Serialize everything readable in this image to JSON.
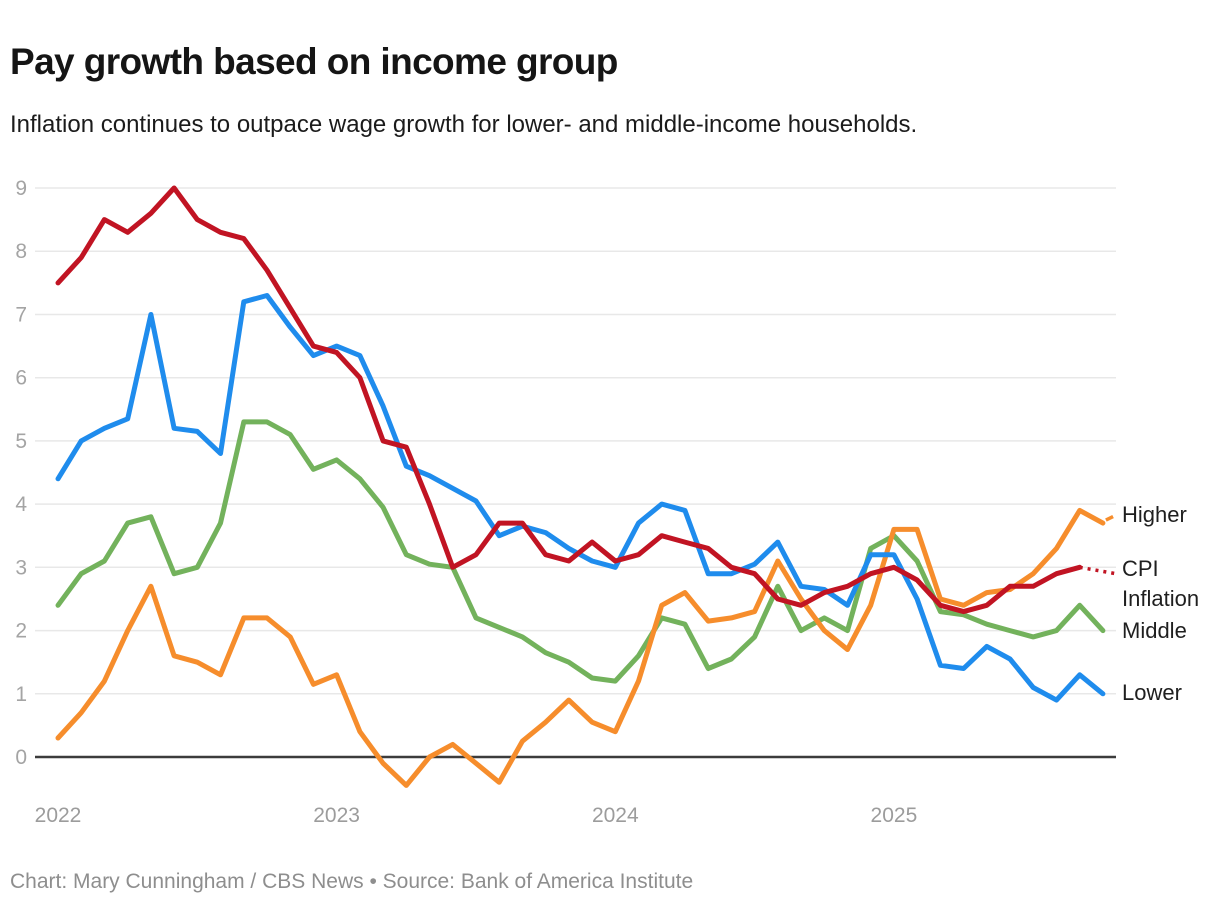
{
  "header": {
    "title": "Pay growth based on income group",
    "subtitle": "Inflation continues to outpace wage growth for lower- and middle-income households."
  },
  "footer": {
    "credit": "Chart: Mary Cunningham / CBS News • Source: Bank of America Institute"
  },
  "chart_data": {
    "type": "line",
    "title": "Pay growth based on income group",
    "x_start": "2022-01",
    "x_end": "2025-10",
    "x_frequency": "monthly",
    "x_tick_labels": [
      "2022",
      "2023",
      "2024",
      "2025"
    ],
    "x_tick_month_indices": [
      0,
      12,
      24,
      36
    ],
    "ylim": [
      0,
      9
    ],
    "yticks": [
      0,
      1,
      2,
      3,
      4,
      5,
      6,
      7,
      8,
      9
    ],
    "grid": "horizontal",
    "legend_position": "right-edge-labels",
    "colors": {
      "lower": "#1f8ced",
      "middle": "#73b25c",
      "higher": "#f68d2c",
      "cpi": "#c11423",
      "gridline": "#e8e8e8",
      "zero_line": "#3c3c3c",
      "tick_text": "#a0a0a0"
    },
    "series": [
      {
        "name": "Middle",
        "color": "#73b25c",
        "values": [
          2.4,
          2.9,
          3.1,
          3.7,
          3.8,
          2.9,
          3.0,
          3.7,
          5.3,
          5.3,
          5.1,
          4.55,
          4.7,
          4.4,
          3.95,
          3.2,
          3.05,
          3.0,
          2.2,
          2.05,
          1.9,
          1.65,
          1.5,
          1.25,
          1.2,
          1.6,
          2.2,
          2.1,
          1.4,
          1.55,
          1.9,
          2.7,
          2.0,
          2.2,
          2.0,
          3.3,
          3.5,
          3.1,
          2.3,
          2.25,
          2.1,
          2.0,
          1.9,
          2.0,
          2.4,
          2.0
        ]
      },
      {
        "name": "Higher",
        "color": "#f68d2c",
        "has_leader_dash": true,
        "values": [
          0.3,
          0.7,
          1.2,
          2.0,
          2.7,
          1.6,
          1.5,
          1.3,
          2.2,
          2.2,
          1.9,
          1.15,
          1.3,
          0.4,
          -0.1,
          -0.45,
          0.0,
          0.2,
          -0.1,
          -0.4,
          0.25,
          0.55,
          0.9,
          0.55,
          0.4,
          1.2,
          2.4,
          2.6,
          2.15,
          2.2,
          2.3,
          3.1,
          2.5,
          2.0,
          1.7,
          2.4,
          3.6,
          3.6,
          2.5,
          2.4,
          2.6,
          2.65,
          2.9,
          3.3,
          3.9,
          3.7
        ]
      },
      {
        "name": "Lower",
        "color": "#1f8ced",
        "values": [
          4.4,
          5.0,
          5.2,
          5.35,
          7.0,
          5.2,
          5.15,
          4.8,
          7.2,
          7.3,
          6.8,
          6.35,
          6.5,
          6.35,
          5.55,
          4.6,
          4.45,
          4.25,
          4.05,
          3.5,
          3.65,
          3.55,
          3.3,
          3.1,
          3.0,
          3.7,
          4.0,
          3.9,
          2.9,
          2.9,
          3.05,
          3.4,
          2.7,
          2.65,
          2.4,
          3.2,
          3.2,
          2.5,
          1.45,
          1.4,
          1.75,
          1.55,
          1.1,
          0.9,
          1.3,
          1.0
        ]
      },
      {
        "name": "CPI Inflation",
        "color": "#c11423",
        "values": [
          7.5,
          7.9,
          8.5,
          8.3,
          8.6,
          9.0,
          8.5,
          8.3,
          8.2,
          7.7,
          7.1,
          6.5,
          6.4,
          6.0,
          5.0,
          4.9,
          4.0,
          3.0,
          3.2,
          3.7,
          3.7,
          3.2,
          3.1,
          3.4,
          3.1,
          3.2,
          3.5,
          3.4,
          3.3,
          3.0,
          2.9,
          2.5,
          2.4,
          2.6,
          2.7,
          2.9,
          3.0,
          2.8,
          2.4,
          2.3,
          2.4,
          2.7,
          2.7,
          2.9,
          3.0
        ],
        "projected_value": 2.9,
        "projection_style": "dotted"
      }
    ],
    "end_labels": [
      {
        "text": "Higher",
        "anchor_value": 3.82
      },
      {
        "text": "CPI Inflation",
        "anchor_value": 2.97
      },
      {
        "text": "Middle",
        "anchor_value": 2.0
      },
      {
        "text": "Lower",
        "anchor_value": 1.02
      }
    ]
  }
}
